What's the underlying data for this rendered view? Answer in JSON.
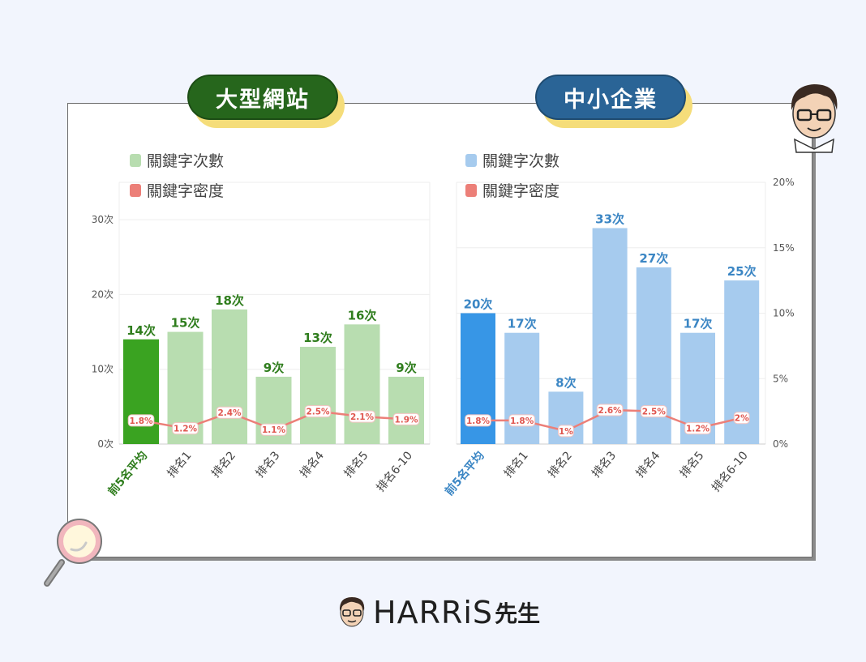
{
  "badges": {
    "left": "大型網站",
    "right": "中小企業"
  },
  "logo": {
    "brand": "HARRiS",
    "suffix": "先生"
  },
  "colors": {
    "green_dark": "#3aa321",
    "green_light": "#b8ddb0",
    "green_label": "#2f7d1d",
    "blue_dark": "#3796e6",
    "blue_light": "#a6cbee",
    "blue_label": "#3b86c4",
    "density_line": "#ec7f78",
    "density_text": "#e0564f"
  },
  "chart_data": [
    {
      "type": "bar",
      "panel": "left",
      "legend": [
        "關鍵字次數",
        "關鍵字密度"
      ],
      "categories": [
        "前5名平均",
        "排名1",
        "排名2",
        "排名3",
        "排名4",
        "排名5",
        "排名6-10"
      ],
      "series": [
        {
          "name": "關鍵字次數",
          "values": [
            14,
            15,
            18,
            9,
            13,
            16,
            9
          ],
          "value_labels": [
            "14次",
            "15次",
            "18次",
            "9次",
            "13次",
            "16次",
            "9次"
          ]
        },
        {
          "name": "關鍵字密度",
          "values": [
            1.8,
            1.2,
            2.4,
            1.1,
            2.5,
            2.1,
            1.9
          ],
          "value_labels": [
            "1.8%",
            "1.2%",
            "2.4%",
            "1.1%",
            "2.5%",
            "2.1%",
            "1.9%"
          ]
        }
      ],
      "ylim": [
        0,
        35
      ],
      "y_ticks": [
        0,
        10,
        20,
        30
      ],
      "y_tick_labels": [
        "0次",
        "10次",
        "20次",
        "30次"
      ],
      "density_ylim": [
        0,
        20
      ],
      "grid": true
    },
    {
      "type": "bar",
      "panel": "right",
      "legend": [
        "關鍵字次數",
        "關鍵字密度"
      ],
      "categories": [
        "前5名平均",
        "排名1",
        "排名2",
        "排名3",
        "排名4",
        "排名5",
        "排名6-10"
      ],
      "series": [
        {
          "name": "關鍵字次數",
          "values": [
            20,
            17,
            8,
            33,
            27,
            17,
            25
          ],
          "value_labels": [
            "20次",
            "17次",
            "8次",
            "33次",
            "27次",
            "17次",
            "25次"
          ]
        },
        {
          "name": "關鍵字密度",
          "values": [
            1.8,
            1.8,
            1.0,
            2.6,
            2.5,
            1.2,
            2.0
          ],
          "value_labels": [
            "1.8%",
            "1.8%",
            "1%",
            "2.6%",
            "2.5%",
            "1.2%",
            "2%"
          ]
        }
      ],
      "ylim": [
        0,
        40
      ],
      "density_ylim": [
        0,
        20
      ],
      "y2_ticks": [
        0,
        5,
        10,
        15,
        20
      ],
      "y2_tick_labels": [
        "0%",
        "5%",
        "10%",
        "15%",
        "20%"
      ],
      "grid": true
    }
  ]
}
